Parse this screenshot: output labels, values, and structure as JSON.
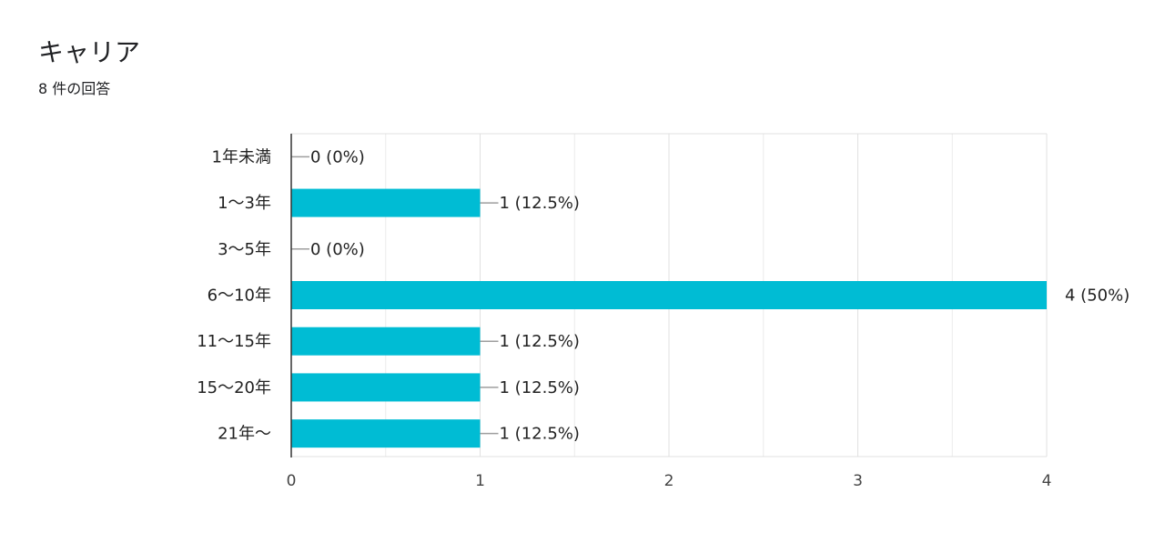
{
  "header": {
    "title": "キャリア",
    "response_count": "8 件の回答"
  },
  "colors": {
    "bar": "#00bcd4",
    "grid": "#e6e6e6",
    "axis": "#333333",
    "label": "#222222",
    "tick": "#444444",
    "leader": "#9e9e9e"
  },
  "chart_data": {
    "type": "bar",
    "orientation": "horizontal",
    "categories": [
      "1年未満",
      "1〜3年",
      "3〜5年",
      "6〜10年",
      "11〜15年",
      "15〜20年",
      "21年〜"
    ],
    "values": [
      0,
      1,
      0,
      4,
      1,
      1,
      1
    ],
    "data_labels": [
      "0 (0%)",
      "1 (12.5%)",
      "0 (0%)",
      "4 (50%)",
      "1 (12.5%)",
      "1 (12.5%)",
      "1 (12.5%)"
    ],
    "xlim": [
      0,
      4
    ],
    "x_ticks": [
      "0",
      "1",
      "2",
      "3",
      "4"
    ],
    "minor_gridlines": true,
    "grid": true,
    "legend": "none"
  }
}
